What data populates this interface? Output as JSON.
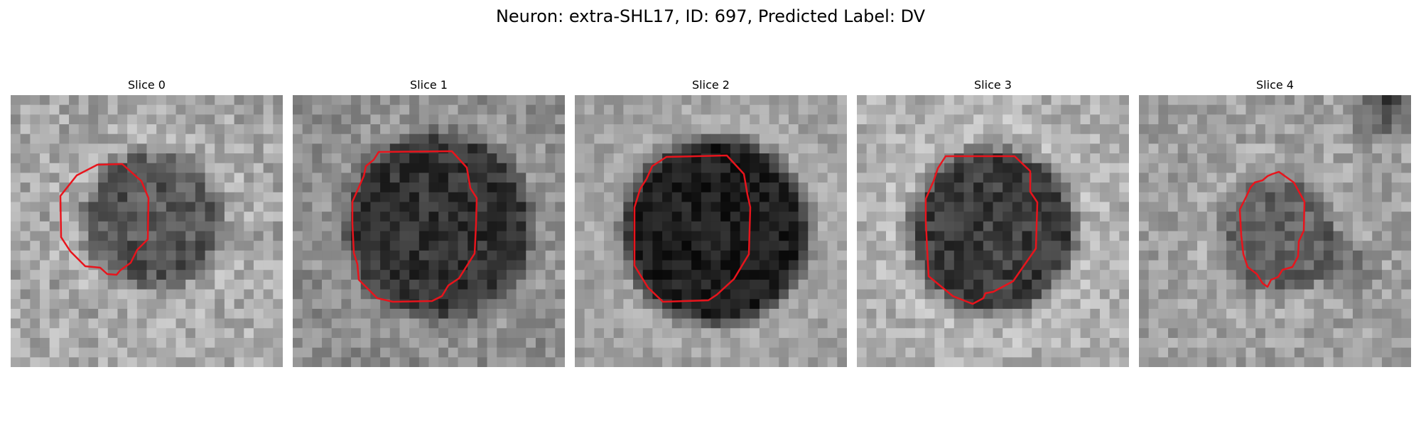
{
  "figure": {
    "title": "Neuron: extra-SHL17, ID: 697, Predicted Label: DV"
  },
  "contour_color": "#e8141c",
  "panels": [
    {
      "title": "Slice 0"
    },
    {
      "title": "Slice 1"
    },
    {
      "title": "Slice 2"
    },
    {
      "title": "Slice 3"
    },
    {
      "title": "Slice 4"
    }
  ]
}
